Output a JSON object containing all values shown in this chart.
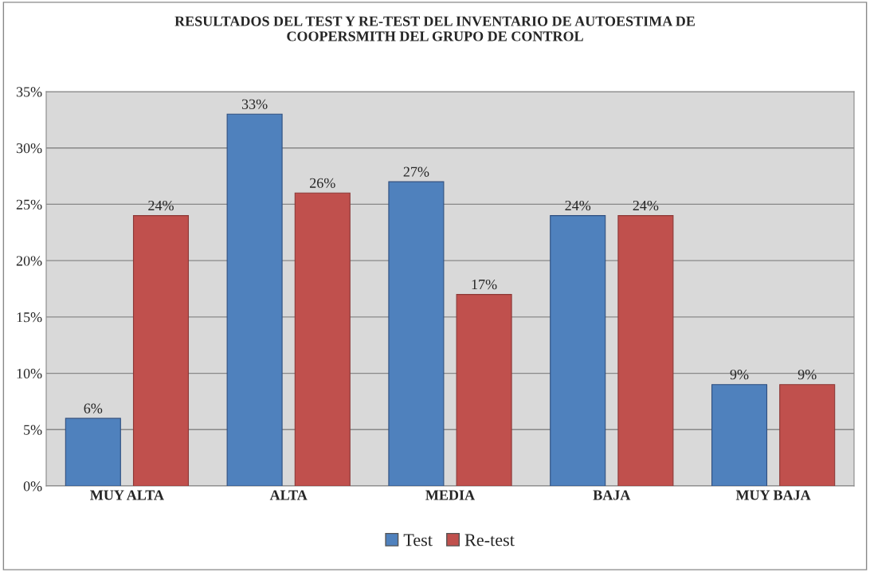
{
  "chart_data": {
    "type": "bar",
    "title": "RESULTADOS DEL TEST Y RE-TEST DEL INVENTARIO DE AUTOESTIMA DE\nCOOPERSMITH DEL GRUPO DE CONTROL",
    "categories": [
      "MUY ALTA",
      "ALTA",
      "MEDIA",
      "BAJA",
      "MUY BAJA"
    ],
    "series": [
      {
        "name": "Test",
        "color": "#4f81bd",
        "values": [
          6,
          33,
          27,
          24,
          9
        ],
        "value_labels": [
          "6%",
          "33%",
          "27%",
          "24%",
          "9%"
        ]
      },
      {
        "name": "Re-test",
        "color": "#c0504d",
        "values": [
          24,
          26,
          17,
          24,
          9
        ],
        "value_labels": [
          "24%",
          "26%",
          "17%",
          "24%",
          "9%"
        ]
      }
    ],
    "ylim": [
      0,
      35
    ],
    "yticks": [
      {
        "value": 0,
        "label": "0%"
      },
      {
        "value": 5,
        "label": "5%"
      },
      {
        "value": 10,
        "label": "10%"
      },
      {
        "value": 15,
        "label": "15%"
      },
      {
        "value": 20,
        "label": "20%"
      },
      {
        "value": 25,
        "label": "25%"
      },
      {
        "value": 30,
        "label": "30%"
      },
      {
        "value": 35,
        "label": "35%"
      }
    ],
    "grid": "y",
    "legend": "bottom"
  }
}
